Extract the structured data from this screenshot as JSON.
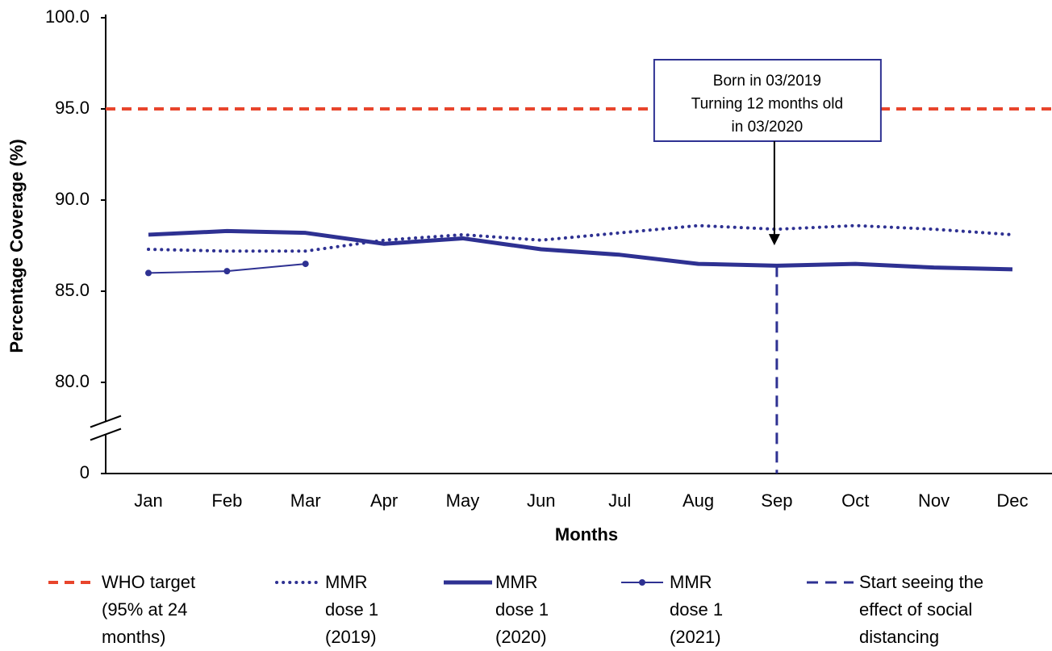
{
  "chart_data": {
    "type": "line",
    "categories": [
      "Jan",
      "Feb",
      "Mar",
      "Apr",
      "May",
      "Jun",
      "Jul",
      "Aug",
      "Sep",
      "Oct",
      "Nov",
      "Dec"
    ],
    "series": [
      {
        "name": "MMR dose 1 (2019)",
        "color": "#2e3192",
        "style": "dotted",
        "values": [
          87.3,
          87.2,
          87.2,
          87.8,
          88.1,
          87.8,
          88.2,
          88.6,
          88.4,
          88.6,
          88.4,
          88.1
        ]
      },
      {
        "name": "MMR dose 1 (2020)",
        "color": "#2e3192",
        "style": "thick",
        "values": [
          88.1,
          88.3,
          88.2,
          87.6,
          87.9,
          87.3,
          87.0,
          86.5,
          86.4,
          86.5,
          86.3,
          86.2
        ]
      },
      {
        "name": "MMR dose 1 (2021)",
        "color": "#2e3192",
        "style": "marker",
        "values": [
          86.0,
          86.1,
          86.5,
          null,
          null,
          null,
          null,
          null,
          null,
          null,
          null,
          null
        ]
      }
    ],
    "reference_line": {
      "name": "WHO target (95% at 24 months)",
      "value": 95,
      "color": "#e8452c"
    },
    "vertical_line": {
      "name": "Start seeing the effect of social distancing",
      "x": "Sep",
      "color": "#2e3192"
    },
    "annotation": {
      "lines": [
        "Born in 03/2019",
        "Turning 12 months old",
        "in 03/2020"
      ],
      "x": "Sep"
    },
    "x_label": "Months",
    "y_label": "Percentage Coverage (%)",
    "ylim": [
      0,
      100
    ],
    "axis_break": [
      0,
      75
    ],
    "yticks": [
      0,
      {
        "value": 80,
        "label": "80.0"
      },
      {
        "value": 85,
        "label": "85.0"
      },
      {
        "value": 90,
        "label": "90.0"
      },
      {
        "value": 95,
        "label": "95.0"
      },
      {
        "value": 100,
        "label": "100.0"
      }
    ]
  }
}
